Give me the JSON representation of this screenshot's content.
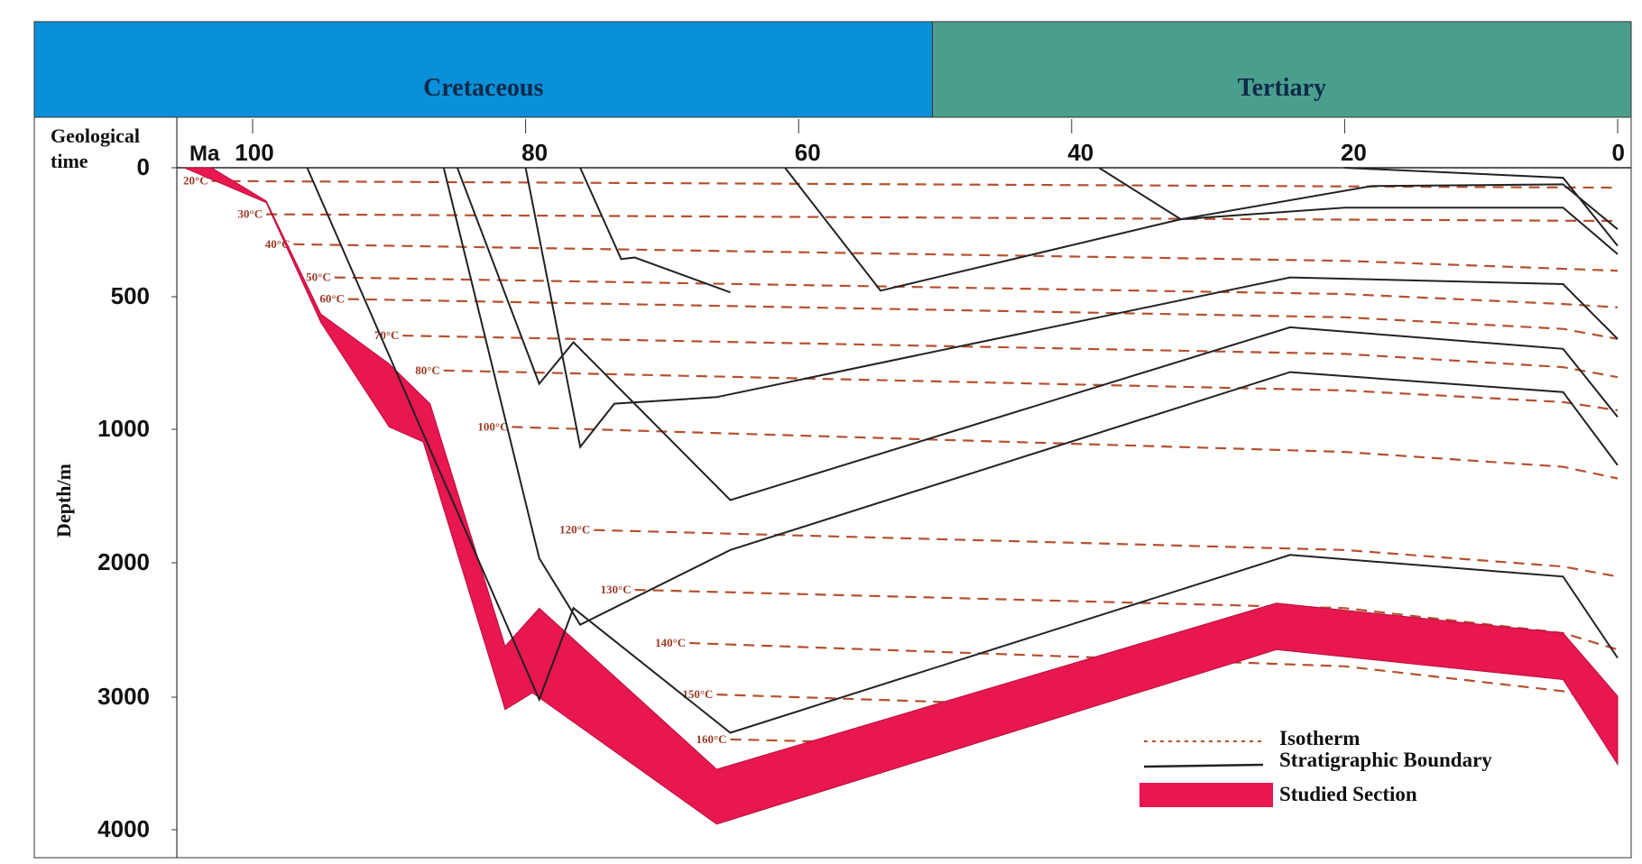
{
  "chart_data": {
    "type": "line",
    "periods": [
      {
        "name": "Cretaceous",
        "from": 100,
        "to": 50,
        "color": "#0a90d9"
      },
      {
        "name": "Tertiary",
        "from": 50,
        "to": 0,
        "color": "#4a9f8c"
      }
    ],
    "x_axis": {
      "label_line1": "Geological",
      "label_line2": "time",
      "unit": "Ma",
      "ticks": [
        100,
        80,
        60,
        40,
        20,
        0
      ],
      "range": [
        105,
        0
      ]
    },
    "y_axis": {
      "label": "Depth/m",
      "ticks": [
        0,
        500,
        1000,
        2000,
        3000,
        4000
      ],
      "range": [
        0,
        4000
      ]
    },
    "legend": {
      "position": "bottom-right",
      "items": [
        {
          "label": "Isotherm",
          "style": "dashed",
          "color": "#b5502f"
        },
        {
          "label": "Stratigraphic Boundary",
          "style": "solid",
          "color": "#222222"
        },
        {
          "label": "Studied Section",
          "style": "fill",
          "color": "#e8174f"
        }
      ]
    },
    "isotherms": [
      {
        "label": "20°C",
        "points": [
          [
            103,
            80
          ],
          [
            0,
            120
          ]
        ]
      },
      {
        "label": "30°C",
        "points": [
          [
            99,
            280
          ],
          [
            0,
            320
          ]
        ]
      },
      {
        "label": "40°C",
        "points": [
          [
            97,
            460
          ],
          [
            20,
            560
          ],
          [
            0,
            620
          ]
        ]
      },
      {
        "label": "50°C",
        "points": [
          [
            94,
            660
          ],
          [
            20,
            760
          ],
          [
            4,
            820
          ],
          [
            0,
            840
          ]
        ]
      },
      {
        "label": "60°C",
        "points": [
          [
            93,
            790
          ],
          [
            20,
            900
          ],
          [
            4,
            970
          ],
          [
            0,
            1030
          ]
        ]
      },
      {
        "label": "70°C",
        "points": [
          [
            89,
            1010
          ],
          [
            20,
            1120
          ],
          [
            4,
            1200
          ],
          [
            0,
            1260
          ]
        ]
      },
      {
        "label": "80°C",
        "points": [
          [
            86,
            1220
          ],
          [
            20,
            1340
          ],
          [
            4,
            1410
          ],
          [
            0,
            1460
          ]
        ]
      },
      {
        "label": "100°C",
        "points": [
          [
            81,
            1560
          ],
          [
            20,
            1710
          ],
          [
            4,
            1800
          ],
          [
            0,
            1870
          ]
        ]
      },
      {
        "label": "120°C",
        "points": [
          [
            75,
            2180
          ],
          [
            20,
            2300
          ],
          [
            4,
            2400
          ],
          [
            0,
            2460
          ]
        ]
      },
      {
        "label": "130°C",
        "points": [
          [
            72,
            2540
          ],
          [
            20,
            2650
          ],
          [
            4,
            2800
          ],
          [
            0,
            2900
          ]
        ]
      },
      {
        "label": "140°C",
        "points": [
          [
            68,
            2860
          ],
          [
            20,
            3000
          ],
          [
            4,
            3150
          ],
          [
            0,
            3250
          ]
        ]
      },
      {
        "label": "150°C",
        "points": [
          [
            66,
            3170
          ],
          [
            40,
            3240
          ]
        ]
      },
      {
        "label": "160°C",
        "points": [
          [
            65,
            3440
          ],
          [
            50,
            3470
          ]
        ]
      }
    ],
    "boundaries": [
      {
        "points": [
          [
            96,
            0
          ],
          [
            79,
            3200
          ],
          [
            76.5,
            2650
          ],
          [
            65,
            3400
          ],
          [
            24,
            2330
          ],
          [
            4,
            2460
          ],
          [
            0,
            2950
          ]
        ]
      },
      {
        "points": [
          [
            86,
            0
          ],
          [
            79,
            2350
          ],
          [
            76,
            2750
          ],
          [
            65,
            2300
          ],
          [
            24,
            1230
          ],
          [
            4,
            1350
          ],
          [
            0,
            1790
          ]
        ]
      },
      {
        "points": [
          [
            85,
            0
          ],
          [
            79,
            1300
          ],
          [
            76.5,
            1050
          ],
          [
            65,
            2000
          ],
          [
            24,
            960
          ],
          [
            4,
            1090
          ],
          [
            0,
            1500
          ]
        ]
      },
      {
        "points": [
          [
            80,
            0
          ],
          [
            76,
            1680
          ],
          [
            73.5,
            1420
          ],
          [
            66,
            1380
          ],
          [
            24,
            660
          ],
          [
            4,
            700
          ],
          [
            0,
            1030
          ]
        ]
      },
      {
        "points": [
          [
            76,
            0
          ],
          [
            73,
            550
          ],
          [
            72,
            540
          ],
          [
            65,
            750
          ]
        ]
      },
      {
        "points": [
          [
            61,
            0
          ],
          [
            54,
            740
          ],
          [
            32,
            310
          ],
          [
            20,
            240
          ],
          [
            4,
            240
          ],
          [
            0,
            520
          ]
        ]
      },
      {
        "points": [
          [
            38,
            0
          ],
          [
            32,
            310
          ],
          [
            18,
            110
          ],
          [
            4,
            100
          ],
          [
            0,
            370
          ]
        ]
      },
      {
        "points": [
          [
            20,
            0
          ],
          [
            4,
            60
          ],
          [
            0,
            470
          ]
        ]
      }
    ],
    "studied_section": {
      "top": [
        [
          103,
          0
        ],
        [
          99,
          200
        ],
        [
          95,
          880
        ],
        [
          90,
          1180
        ],
        [
          87,
          1420
        ],
        [
          81.5,
          2880
        ],
        [
          79,
          2650
        ],
        [
          66,
          3620
        ],
        [
          25,
          2620
        ],
        [
          4,
          2800
        ],
        [
          0,
          3180
        ]
      ],
      "bottom": [
        [
          0,
          3590
        ],
        [
          4,
          3080
        ],
        [
          25,
          2900
        ],
        [
          66,
          3950
        ],
        [
          79.5,
          3160
        ],
        [
          81.5,
          3260
        ],
        [
          87.5,
          1650
        ],
        [
          90,
          1560
        ],
        [
          95,
          930
        ],
        [
          99,
          210
        ],
        [
          105,
          0
        ]
      ]
    }
  }
}
